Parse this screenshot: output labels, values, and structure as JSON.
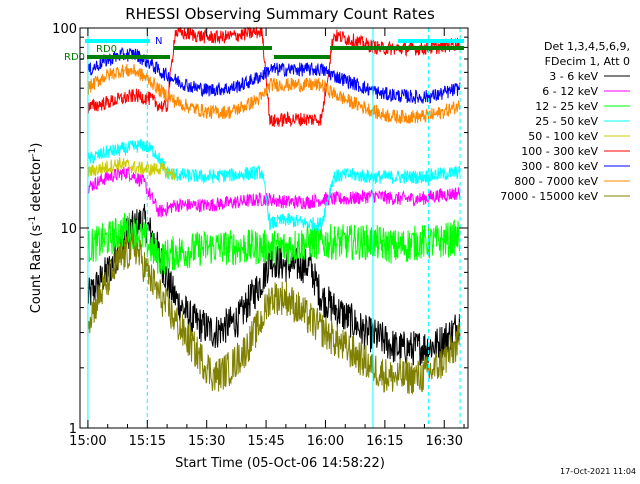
{
  "chart_data": {
    "type": "line",
    "title": "RHESSI Observing Summary Count Rates",
    "xlabel": "Start Time (05-Oct-06 14:58:22)",
    "ylabel_main": "Count Rate (s",
    "ylabel_sup1": "-1",
    "ylabel_mid": " detector",
    "ylabel_sup2": "-1",
    "ylabel_end": ")",
    "yscale": "log",
    "ylim": [
      1,
      100
    ],
    "xlim_minutes": [
      -2,
      96
    ],
    "x_tick_labels": [
      "15:00",
      "15:15",
      "15:30",
      "15:45",
      "16:00",
      "16:15",
      "16:30"
    ],
    "x_tick_minutes": [
      0,
      15,
      30,
      45,
      60,
      75,
      90
    ],
    "y_tick_labels": [
      "1",
      "10",
      "100"
    ],
    "y_tick_values": [
      1,
      10,
      100
    ],
    "grid": false,
    "legend_position": "right",
    "legend_header": [
      "Det 1,3,4,5,6,9,",
      "FDecim 1, Att 0"
    ],
    "timestamp": "17-Oct-2021 11:04",
    "annotations": {
      "n_label": "N",
      "rd0_label_1": "RD0",
      "rd0_label_2": "RD0",
      "n_color": "#00ffff",
      "rd0_color": "#008000"
    },
    "series": [
      {
        "name": "3 - 6 keV",
        "color": "#000000",
        "x": [
          0,
          6,
          10,
          14,
          17,
          20,
          22,
          26,
          32,
          38,
          44,
          46,
          50,
          56,
          59,
          62,
          66,
          70,
          74,
          78,
          82,
          88,
          92,
          94
        ],
        "y": [
          4.5,
          6.5,
          9.5,
          11,
          8.5,
          5.5,
          4.5,
          3.5,
          3.0,
          3.5,
          5.5,
          7.0,
          6.5,
          6.5,
          4.5,
          4.0,
          3.5,
          3.0,
          2.8,
          2.5,
          2.5,
          2.6,
          3.0,
          3.4
        ]
      },
      {
        "name": "6 - 12 keV",
        "color": "#ff00ff",
        "x": [
          0,
          5,
          10,
          14,
          18,
          22,
          30,
          38,
          45,
          50,
          56,
          60,
          66,
          72,
          78,
          84,
          88,
          94
        ],
        "y": [
          16,
          18,
          19,
          17,
          12,
          13,
          13,
          13.5,
          14,
          13.5,
          13.5,
          14,
          14,
          14.5,
          14,
          14,
          14.5,
          15
        ]
      },
      {
        "name": "12 - 25 keV",
        "color": "#00ff00",
        "x": [
          0,
          6,
          10,
          14,
          18,
          22,
          30,
          38,
          45,
          50,
          56,
          60,
          66,
          72,
          78,
          84,
          88,
          94
        ],
        "y": [
          8,
          9,
          10,
          9,
          7,
          7.5,
          8,
          8,
          8,
          8,
          8.5,
          8.5,
          8.5,
          8.5,
          8,
          8.5,
          8.5,
          9
        ]
      },
      {
        "name": "25 - 50 keV",
        "color": "#00ffff",
        "x": [
          0,
          5,
          10,
          14,
          17,
          20,
          22,
          30,
          38,
          44,
          46,
          50,
          56,
          59,
          62,
          66,
          72,
          78,
          84,
          88,
          94
        ],
        "y": [
          22,
          24,
          25,
          26,
          24,
          19,
          18.5,
          18,
          18.5,
          19,
          10.5,
          11,
          10.5,
          10.5,
          18,
          18.5,
          18,
          18,
          18,
          18.5,
          19
        ]
      },
      {
        "name": "50 - 100 keV",
        "color": "#cccc00",
        "x": [
          0,
          4,
          8,
          12,
          16,
          18,
          20,
          22
        ],
        "y": [
          19,
          20,
          21,
          20,
          19.5,
          20,
          19,
          18.5
        ]
      },
      {
        "name": "100 - 300 keV",
        "color": "#ff0000",
        "x": [
          0,
          4,
          8,
          12,
          16,
          18,
          20,
          22,
          26,
          30,
          34,
          38,
          42,
          44,
          46,
          50,
          56,
          59,
          62,
          66,
          70,
          74,
          78,
          84,
          88,
          94
        ],
        "y": [
          40,
          42,
          44,
          46,
          44,
          41,
          40,
          95,
          93,
          90,
          90,
          92,
          95,
          96,
          34,
          35,
          35,
          35,
          92,
          88,
          83,
          79,
          79,
          79,
          80,
          84
        ]
      },
      {
        "name": "300 - 800 keV",
        "color": "#0000ff",
        "x": [
          0,
          4,
          8,
          12,
          16,
          18,
          20,
          22,
          26,
          30,
          36,
          40,
          44,
          46,
          50,
          56,
          59,
          62,
          66,
          70,
          74,
          78,
          84,
          88,
          94
        ],
        "y": [
          61,
          68,
          73,
          74,
          66,
          61,
          58,
          55,
          51,
          49,
          50,
          53,
          58,
          62,
          62,
          62,
          62,
          58,
          54,
          50,
          47,
          46,
          45,
          46,
          50
        ]
      },
      {
        "name": "800 - 7000 keV",
        "color": "#ff8800",
        "x": [
          0,
          4,
          8,
          12,
          16,
          18,
          20,
          22,
          26,
          30,
          36,
          40,
          44,
          46,
          50,
          56,
          59,
          62,
          66,
          70,
          74,
          78,
          84,
          88,
          94
        ],
        "y": [
          50,
          57,
          61,
          61,
          54,
          49,
          46,
          43,
          40,
          38,
          38,
          41,
          45,
          52,
          52,
          52,
          52,
          47,
          43,
          40,
          37,
          36,
          36,
          37,
          41
        ]
      },
      {
        "name": "7000 - 15000 keV",
        "color": "#808000",
        "x": [
          0,
          4,
          8,
          12,
          16,
          20,
          24,
          28,
          32,
          36,
          40,
          44,
          46,
          50,
          56,
          60,
          64,
          68,
          72,
          76,
          80,
          84,
          88,
          92,
          94
        ],
        "y": [
          3.5,
          5.0,
          7.0,
          8.0,
          5.5,
          4.0,
          3.0,
          2.3,
          1.8,
          2.0,
          2.5,
          3.5,
          4.5,
          4.5,
          3.5,
          3.0,
          2.6,
          2.3,
          2.0,
          1.8,
          1.8,
          1.8,
          2.0,
          2.4,
          2.8
        ]
      }
    ]
  }
}
